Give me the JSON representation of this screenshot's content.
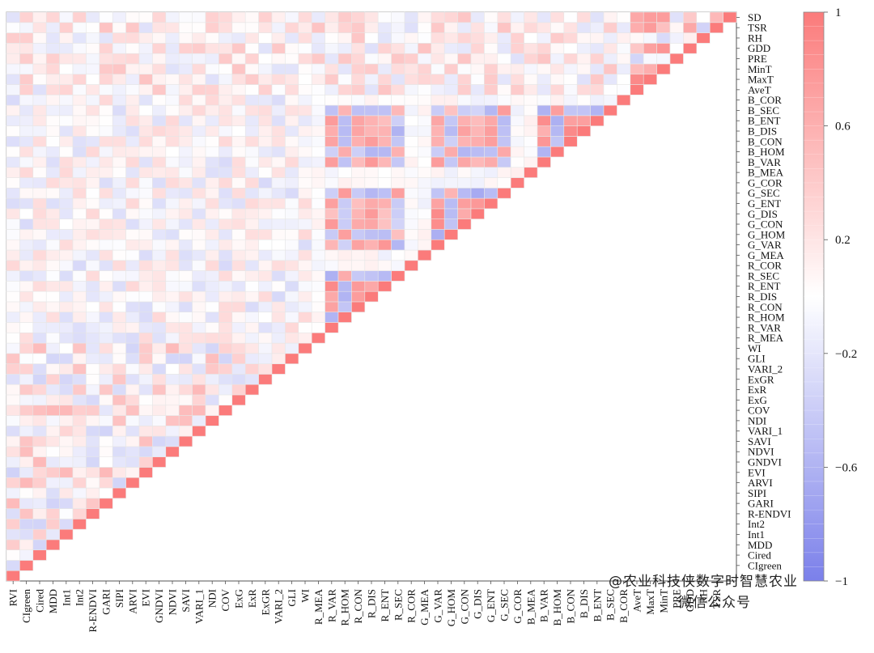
{
  "chart_data": {
    "type": "heatmap",
    "subtype": "lower-triangular correlation matrix",
    "variables": [
      "RVI",
      "CIgreen",
      "Cired",
      "MDD",
      "Int1",
      "Int2",
      "R-ENDVI",
      "GARI",
      "SIPI",
      "ARVI",
      "EVI",
      "GNDVI",
      "NDVI",
      "SAVI",
      "VARI_1",
      "NDI",
      "COV",
      "ExG",
      "ExR",
      "ExGR",
      "VARI_2",
      "GLI",
      "WI",
      "R_MEA",
      "R_VAR",
      "R_HOM",
      "R_CON",
      "R_DIS",
      "R_ENT",
      "R_SEC",
      "R_COR",
      "G_MEA",
      "G_VAR",
      "G_HOM",
      "G_CON",
      "G_DIS",
      "G_ENT",
      "G_SEC",
      "G_COR",
      "B_MEA",
      "B_VAR",
      "B_HOM",
      "B_CON",
      "B_DIS",
      "B_ENT",
      "B_SEC",
      "B_COR",
      "AveT",
      "MaxT",
      "MinT",
      "PRE",
      "GDD",
      "RH",
      "TSR",
      "SD"
    ],
    "x_tick_labels": [
      "RVI",
      "CIgreen",
      "Cired",
      "MDD",
      "Int1",
      "Int2",
      "R-ENDVI",
      "GARI",
      "SIPI",
      "ARVI",
      "EVI",
      "GNDVI",
      "NDVI",
      "SAVI",
      "VARI_1",
      "NDI",
      "COV",
      "ExG",
      "ExR",
      "ExGR",
      "VARI_2",
      "GLI",
      "WI",
      "R_MEA",
      "R_VAR",
      "R_HOM",
      "R_CON",
      "R_DIS",
      "R_ENT",
      "R_SEC",
      "R_COR",
      "G_MEA",
      "G_VAR",
      "G_HOM",
      "G_CON",
      "G_DIS",
      "G_ENT",
      "G_SEC",
      "G_COR",
      "B_MEA",
      "B_VAR",
      "B_HOM",
      "B_CON",
      "B_DIS",
      "B_ENT",
      "B_SEC",
      "B_COR",
      "AveT",
      "MaxT",
      "MinT",
      "PRE",
      "GDD",
      "RH",
      "TSR"
    ],
    "y_tick_labels": [
      "SD",
      "TSR",
      "RH",
      "GDD",
      "PRE",
      "MinT",
      "MaxT",
      "AveT",
      "B_COR",
      "B_SEC",
      "B_ENT",
      "B_DIS",
      "B_CON",
      "B_HOM",
      "B_VAR",
      "B_MEA",
      "G_COR",
      "G_SEC",
      "G_ENT",
      "G_DIS",
      "G_CON",
      "G_HOM",
      "G_VAR",
      "G_MEA",
      "R_COR",
      "R_SEC",
      "R_ENT",
      "R_DIS",
      "R_CON",
      "R_HOM",
      "R_VAR",
      "R_MEA",
      "WI",
      "GLI",
      "VARI_2",
      "ExGR",
      "ExR",
      "ExG",
      "COV",
      "NDI",
      "VARI_1",
      "SAVI",
      "NDVI",
      "GNDVI",
      "EVI",
      "ARVI",
      "SIPI",
      "GARI",
      "R-ENDVI",
      "Int2",
      "Int1",
      "MDD",
      "Cired",
      "CIgreen"
    ],
    "value_range": [
      -1,
      1
    ],
    "colorbar": {
      "ticks": [
        -1,
        -0.6,
        -0.2,
        0.2,
        0.6,
        1
      ],
      "tick_labels": [
        "−1",
        "−0.6",
        "−0.2",
        "0.2",
        "0.6",
        "1"
      ],
      "low_color": "#7b80ea",
      "mid_color": "#ffffff",
      "high_color": "#fb7b7b"
    },
    "grid": true,
    "diagonal": "self-correlation = 1"
  },
  "watermark": {
    "line1": "@农业科技侠数字时智慧农业",
    "line2": "微信公众号"
  }
}
